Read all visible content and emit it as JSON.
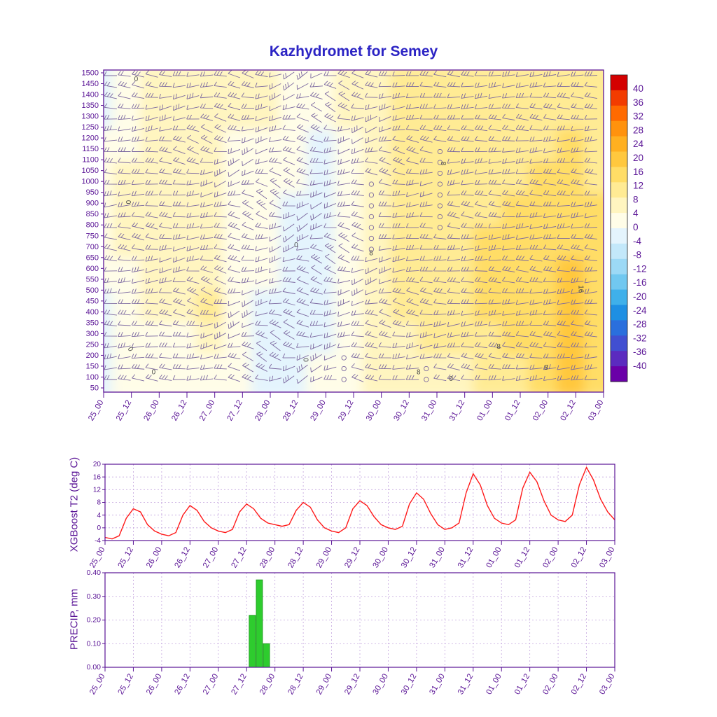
{
  "title": "Kazhydromet for Semey",
  "time_labels": [
    "25_00",
    "25_12",
    "26_00",
    "26_12",
    "27_00",
    "27_12",
    "28_00",
    "28_12",
    "29_00",
    "29_12",
    "30_00",
    "30_12",
    "31_00",
    "31_12",
    "01_00",
    "01_12",
    "02_00",
    "02_12",
    "03_00"
  ],
  "colors": {
    "title": "#2b23c4",
    "axis": "#5a1496",
    "grid": "#c2a3dd",
    "line": "#ff1a1a",
    "bar": "#2ecc2e",
    "bar_edge": "#149414",
    "barb": "#7b68a0",
    "contour_label": "#4a4a4a",
    "colorbar_border": "#222222"
  },
  "chart_data": [
    {
      "type": "heatmap",
      "id": "cross-section",
      "title": "Kazhydromet for Semey",
      "xlabel": "",
      "ylabel": "",
      "y_levels": [
        1500,
        1450,
        1400,
        1350,
        1300,
        1250,
        1200,
        1150,
        1100,
        1050,
        1000,
        950,
        900,
        850,
        800,
        750,
        700,
        650,
        600,
        550,
        500,
        450,
        400,
        350,
        300,
        250,
        200,
        150,
        100,
        50
      ],
      "x_labels": [
        "25_00",
        "25_12",
        "26_00",
        "26_12",
        "27_00",
        "27_12",
        "28_00",
        "28_12",
        "29_00",
        "29_12",
        "30_00",
        "30_12",
        "31_00",
        "31_12",
        "01_00",
        "01_12",
        "02_00",
        "02_12",
        "03_00"
      ],
      "values_note": "temperature (deg C), rows from 1500 (top) to 50 (bottom), cols = x_labels",
      "values": [
        [
          -1,
          3,
          4,
          4,
          4,
          4,
          5,
          2,
          1,
          4,
          6,
          8,
          8,
          9,
          9,
          10,
          10,
          11,
          10
        ],
        [
          -1,
          3,
          4,
          4,
          4,
          4,
          4,
          1,
          0,
          4,
          7,
          8,
          9,
          9,
          10,
          10,
          11,
          11,
          10
        ],
        [
          0,
          3,
          4,
          5,
          4,
          3,
          3,
          0,
          -1,
          3,
          7,
          9,
          9,
          10,
          10,
          11,
          11,
          12,
          11
        ],
        [
          0,
          4,
          5,
          6,
          5,
          3,
          2,
          0,
          -2,
          2,
          7,
          9,
          10,
          10,
          11,
          11,
          12,
          12,
          11
        ],
        [
          0,
          4,
          6,
          6,
          5,
          3,
          1,
          -1,
          -2,
          2,
          6,
          9,
          10,
          11,
          11,
          12,
          12,
          13,
          12
        ],
        [
          1,
          4,
          6,
          7,
          5,
          2,
          0,
          -1,
          -3,
          1,
          6,
          9,
          10,
          11,
          12,
          12,
          13,
          14,
          12
        ],
        [
          0,
          3,
          5,
          6,
          4,
          1,
          0,
          -2,
          -3,
          1,
          5,
          8,
          10,
          11,
          12,
          13,
          14,
          16,
          13
        ],
        [
          -2,
          2,
          4,
          6,
          8,
          2,
          -1,
          -2,
          -2,
          2,
          5,
          8,
          10,
          11,
          12,
          13,
          14,
          17,
          14
        ],
        [
          -3,
          1,
          2,
          3,
          4,
          1,
          -1,
          -2,
          -1,
          2,
          4,
          6,
          8,
          9,
          10,
          12,
          14,
          18,
          14
        ],
        [
          -4,
          0,
          1,
          2,
          2,
          0,
          -1,
          -1,
          0,
          2,
          4,
          5,
          6,
          7,
          8,
          10,
          13,
          17,
          12
        ]
      ],
      "contour_labels": [
        {
          "t": "0",
          "fx": 0.065,
          "fy": 0.035,
          "rot": 0
        },
        {
          "t": "0",
          "fx": 0.045,
          "fy": 0.41,
          "rot": 90
        },
        {
          "t": "8",
          "fx": 0.675,
          "fy": 0.29,
          "rot": 90
        },
        {
          "t": "0",
          "fx": 0.385,
          "fy": 0.55,
          "rot": 0
        },
        {
          "t": "8",
          "fx": 0.535,
          "fy": 0.575,
          "rot": 0
        },
        {
          "t": "16",
          "fx": 0.95,
          "fy": 0.68,
          "rot": 90
        },
        {
          "t": "8",
          "fx": 0.79,
          "fy": 0.865,
          "rot": 0
        },
        {
          "t": "0",
          "fx": 0.05,
          "fy": 0.87,
          "rot": 60
        },
        {
          "t": "0",
          "fx": 0.1,
          "fy": 0.945,
          "rot": 0
        },
        {
          "t": "0",
          "fx": 0.4,
          "fy": 0.9,
          "rot": 90
        },
        {
          "t": "8",
          "fx": 0.885,
          "fy": 0.93,
          "rot": 0
        },
        {
          "t": "0",
          "fx": 0.695,
          "fy": 0.965,
          "rot": 0
        },
        {
          "t": "8",
          "fx": 0.63,
          "fy": 0.945,
          "rot": 0
        }
      ],
      "colorbar": {
        "ticks": [
          40,
          36,
          32,
          28,
          24,
          20,
          16,
          12,
          8,
          4,
          0,
          -4,
          -8,
          -12,
          -16,
          -20,
          -24,
          -28,
          -32,
          -36,
          -40
        ],
        "palette_low_to_high": [
          "#6a00a8",
          "#5b2bbf",
          "#414fd1",
          "#2a6fdd",
          "#1e8fe3",
          "#3fb0ea",
          "#71c8f0",
          "#9cd9f6",
          "#c3e8fa",
          "#e4f4fd",
          "#fffde8",
          "#fff5c0",
          "#ffeb94",
          "#ffdd66",
          "#ffc83e",
          "#ffb020",
          "#ff920d",
          "#ff6a00",
          "#f23c00",
          "#d40000"
        ]
      }
    },
    {
      "type": "line",
      "id": "t2",
      "ylabel": "XGBoost T2 (deg C)",
      "x_labels": [
        "25_00",
        "25_12",
        "26_00",
        "26_12",
        "27_00",
        "27_12",
        "28_00",
        "28_12",
        "29_00",
        "29_12",
        "30_00",
        "30_12",
        "31_00",
        "31_12",
        "01_00",
        "01_12",
        "02_00",
        "02_12",
        "03_00"
      ],
      "y_ticks": [
        20,
        16,
        12,
        8,
        4,
        0,
        -4
      ],
      "ylim": [
        -4,
        20
      ],
      "x_step_hours": 3,
      "series": [
        {
          "name": "XGBoost T2",
          "color": "#ff1a1a",
          "values": [
            -3,
            -3.5,
            -2.5,
            3,
            6,
            5,
            1,
            -1,
            -2,
            -2.5,
            -1.5,
            4,
            7,
            5.5,
            2,
            0,
            -1,
            -1.5,
            -0.5,
            5,
            7.5,
            6,
            3,
            1.5,
            1,
            0.5,
            1,
            5.5,
            8,
            6.5,
            2.5,
            0,
            -1,
            -1.5,
            0,
            6,
            8.5,
            7,
            3.5,
            1,
            0,
            -0.5,
            0.5,
            7.5,
            11,
            9,
            4.5,
            1,
            -0.5,
            0,
            1.5,
            11,
            17,
            13.5,
            7,
            3,
            1.5,
            1,
            2.5,
            12.5,
            17.5,
            14.5,
            8.5,
            4,
            2.5,
            2,
            4,
            13.5,
            19,
            15,
            9,
            5,
            2.5
          ]
        }
      ]
    },
    {
      "type": "bar",
      "id": "precip",
      "ylabel": "PRECIP, mm",
      "x_labels": [
        "25_00",
        "25_12",
        "26_00",
        "26_12",
        "27_00",
        "27_12",
        "28_00",
        "28_12",
        "29_00",
        "29_12",
        "30_00",
        "30_12",
        "31_00",
        "31_12",
        "01_00",
        "01_12",
        "02_00",
        "02_12",
        "03_00"
      ],
      "y_ticks": [
        "0.40",
        "0.30",
        "0.20",
        "0.10",
        "0.00"
      ],
      "ylim": [
        0,
        0.4
      ],
      "bars": [
        {
          "pos": 5.2,
          "value": 0.22
        },
        {
          "pos": 5.45,
          "value": 0.37
        },
        {
          "pos": 5.7,
          "value": 0.1
        }
      ]
    }
  ]
}
